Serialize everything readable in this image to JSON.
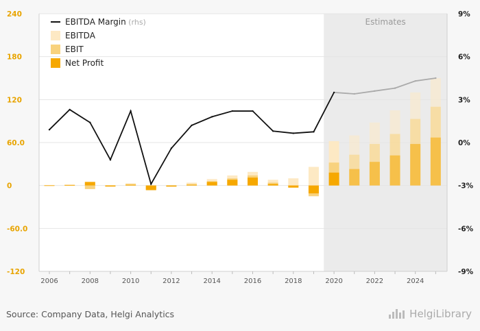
{
  "chart_data": {
    "type": "bar",
    "x": [
      2006,
      2007,
      2008,
      2009,
      2010,
      2011,
      2012,
      2013,
      2014,
      2015,
      2016,
      2017,
      2018,
      2019,
      2020,
      2021,
      2022,
      2023,
      2024,
      2025
    ],
    "series": [
      {
        "name": "EBITDA Margin",
        "axis": "right",
        "kind": "line",
        "unit": "%",
        "values": [
          0.9,
          2.3,
          1.4,
          -1.2,
          2.2,
          -2.9,
          -0.4,
          1.2,
          1.8,
          2.2,
          2.2,
          0.8,
          0.65,
          0.75,
          3.5,
          3.4,
          3.6,
          3.8,
          4.3,
          4.5
        ]
      },
      {
        "name": "EBITDA",
        "axis": "left",
        "kind": "bar",
        "values": [
          0.5,
          1.5,
          5,
          0.5,
          3,
          -5,
          -1,
          4,
          9,
          14,
          19,
          8,
          10,
          26,
          62,
          70,
          88,
          105,
          130,
          150
        ]
      },
      {
        "name": "EBIT",
        "axis": "left",
        "kind": "bar",
        "values": [
          0.3,
          0.8,
          -5,
          -1,
          2,
          -7,
          -1.5,
          2,
          6,
          10,
          14,
          4,
          -1,
          -15,
          32,
          43,
          58,
          72,
          93,
          110
        ]
      },
      {
        "name": "Net Profit",
        "axis": "left",
        "kind": "bar",
        "values": [
          0.2,
          0.5,
          5,
          -1.5,
          1,
          -6,
          -1.5,
          1,
          5,
          8,
          11,
          2,
          -3,
          -11,
          18,
          23,
          33,
          42,
          58,
          67
        ]
      }
    ],
    "estimates_from": 2020,
    "estimates_label": "Estimates",
    "y_left": {
      "min": -120,
      "max": 240,
      "ticks": [
        -120,
        -60.0,
        0,
        60.0,
        120,
        180,
        240
      ],
      "tick_labels": [
        "-120",
        "-60.0",
        "0",
        "60.0",
        "120",
        "180",
        "240"
      ]
    },
    "y_right": {
      "min": -9,
      "max": 9,
      "ticks": [
        -9,
        -6,
        -3,
        0,
        3,
        6,
        9
      ],
      "tick_labels": [
        "-9%",
        "-6%",
        "-3%",
        "0%",
        "3%",
        "6%",
        "9%"
      ]
    },
    "x_tick_labels": [
      "2006",
      "2008",
      "2010",
      "2012",
      "2014",
      "2016",
      "2018",
      "2020",
      "2022",
      "2024"
    ],
    "legend": {
      "placement": "top-left",
      "items": [
        {
          "label": "EBITDA Margin",
          "suffix": "(rhs)",
          "kind": "line"
        },
        {
          "label": "EBITDA",
          "kind": "bar"
        },
        {
          "label": "EBIT",
          "kind": "bar"
        },
        {
          "label": "Net Profit",
          "kind": "bar"
        }
      ]
    },
    "grid": true,
    "colors": {
      "ebitda": "#fde9c4",
      "ebit": "#f8d27e",
      "net_profit": "#f6a800",
      "line": "#111111",
      "line_estimate": "#aaaaaa",
      "left_axis_text": "#e8a400",
      "right_axis_text": "#222222",
      "estimate_band": "#ebebeb",
      "grid": "#e4e4e4"
    }
  },
  "footer": {
    "source": "Source: Company Data, Helgi Analytics",
    "logo_text": "HelgiLibrary"
  }
}
